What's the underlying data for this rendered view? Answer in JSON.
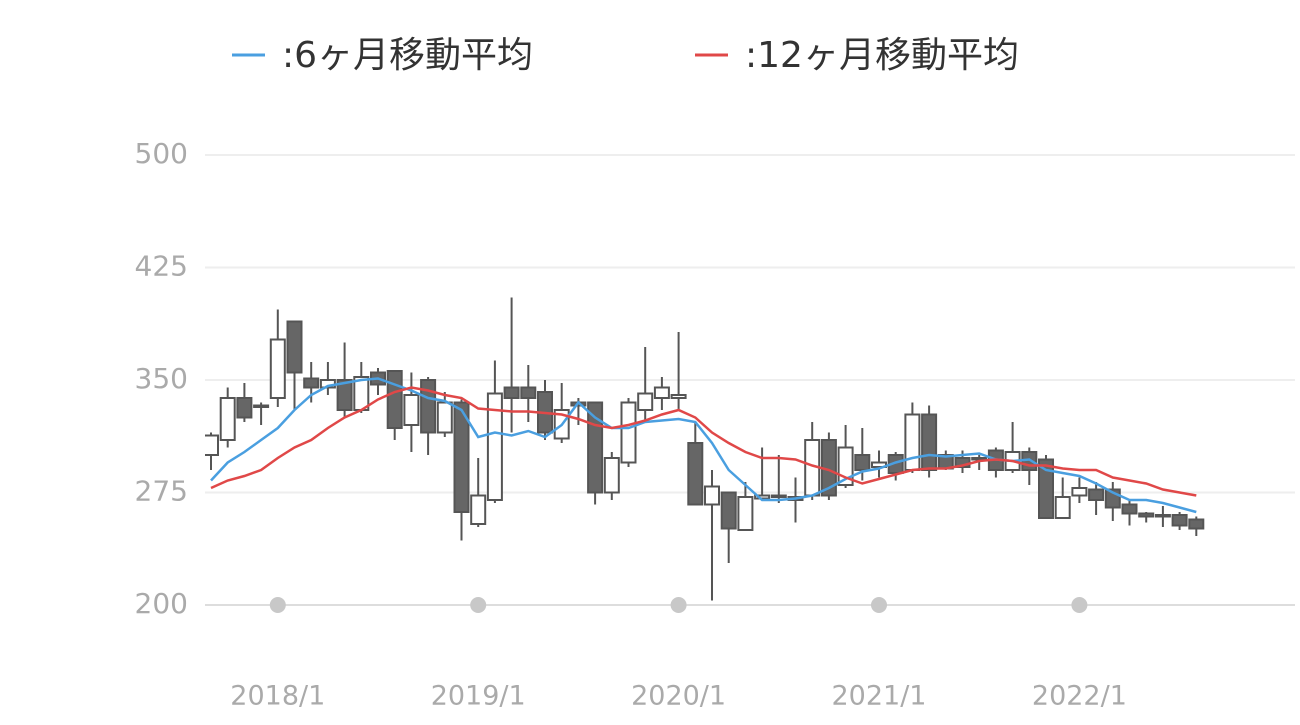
{
  "chart_data": {
    "type": "candlestick",
    "legend": "top",
    "grid": true,
    "categories": [
      null,
      null,
      null,
      null,
      "2018/1",
      null,
      null,
      null,
      null,
      null,
      null,
      null,
      null,
      null,
      null,
      null,
      "2019/1",
      null,
      null,
      null,
      null,
      null,
      null,
      null,
      null,
      null,
      null,
      null,
      "2020/1",
      null,
      null,
      null,
      null,
      null,
      null,
      null,
      null,
      null,
      null,
      null,
      "2021/1",
      null,
      null,
      null,
      null,
      null,
      null,
      null,
      null,
      null,
      null,
      null,
      "2022/1",
      null,
      null,
      null,
      null,
      null,
      null,
      null
    ],
    "up_color": "#ffffff",
    "down_color": "#666666",
    "open": [
      300,
      310,
      338,
      333,
      338,
      389,
      351,
      345,
      350,
      330,
      355,
      356,
      320,
      350,
      315,
      335,
      254,
      270,
      345,
      345,
      342,
      311,
      335,
      335,
      275,
      295,
      330,
      338,
      338,
      308,
      267,
      275,
      250,
      271,
      273,
      272,
      273,
      310,
      280,
      300,
      292,
      300,
      290,
      327,
      300,
      298,
      297,
      303,
      290,
      302,
      297,
      258,
      273,
      277,
      277,
      267,
      261,
      260,
      260,
      257
    ],
    "high": [
      315,
      345,
      348,
      335,
      397,
      389,
      362,
      362,
      375,
      362,
      358,
      356,
      355,
      352,
      342,
      337,
      298,
      363,
      405,
      360,
      350,
      348,
      338,
      335,
      302,
      338,
      372,
      352,
      382,
      322,
      290,
      275,
      282,
      305,
      300,
      285,
      322,
      315,
      320,
      318,
      303,
      302,
      335,
      333,
      303,
      303,
      300,
      305,
      322,
      305,
      300,
      285,
      285,
      282,
      282,
      270,
      262,
      266,
      262,
      259
    ],
    "low": [
      290,
      305,
      322,
      320,
      332,
      330,
      335,
      340,
      325,
      328,
      340,
      310,
      302,
      300,
      312,
      243,
      252,
      268,
      315,
      322,
      310,
      308,
      320,
      267,
      270,
      292,
      322,
      330,
      330,
      267,
      203,
      228,
      250,
      270,
      268,
      255,
      270,
      270,
      278,
      283,
      285,
      283,
      288,
      285,
      290,
      288,
      290,
      285,
      288,
      280,
      258,
      258,
      268,
      260,
      256,
      253,
      255,
      252,
      250,
      246
    ],
    "close": [
      313,
      338,
      325,
      332,
      377,
      355,
      345,
      350,
      330,
      352,
      347,
      318,
      340,
      315,
      335,
      262,
      273,
      341,
      338,
      338,
      315,
      330,
      333,
      275,
      298,
      335,
      341,
      345,
      340,
      267,
      279,
      251,
      272,
      273,
      272,
      270,
      310,
      273,
      305,
      290,
      295,
      288,
      327,
      290,
      291,
      292,
      298,
      290,
      302,
      290,
      258,
      272,
      278,
      270,
      265,
      261,
      259,
      259,
      253,
      251
    ],
    "series": [
      {
        "name": ":6ヶ月移動平均",
        "color": "#4a9fe0",
        "values": [
          283,
          295,
          302,
          310,
          318,
          330,
          340,
          346,
          348,
          350,
          351,
          347,
          343,
          338,
          336,
          330,
          312,
          315,
          313,
          316,
          312,
          320,
          335,
          325,
          318,
          318,
          322,
          323,
          324,
          322,
          308,
          290,
          280,
          270,
          270,
          271,
          273,
          278,
          284,
          289,
          291,
          295,
          298,
          300,
          299,
          300,
          301,
          297,
          296,
          297,
          290,
          288,
          286,
          281,
          275,
          270,
          270,
          268,
          265,
          262
        ]
      },
      {
        "name": ":12ヶ月移動平均",
        "color": "#e04848",
        "values": [
          278,
          283,
          286,
          290,
          298,
          305,
          310,
          318,
          325,
          330,
          337,
          342,
          345,
          343,
          340,
          338,
          331,
          330,
          329,
          329,
          328,
          327,
          324,
          320,
          318,
          320,
          323,
          327,
          330,
          325,
          315,
          308,
          302,
          298,
          298,
          297,
          293,
          290,
          285,
          281,
          284,
          287,
          290,
          291,
          291,
          293,
          296,
          297,
          296,
          293,
          293,
          291,
          290,
          290,
          285,
          283,
          281,
          277,
          275,
          273
        ]
      }
    ],
    "ylim": [
      200,
      500
    ],
    "yticks": [
      200,
      275,
      350,
      425,
      500
    ]
  }
}
